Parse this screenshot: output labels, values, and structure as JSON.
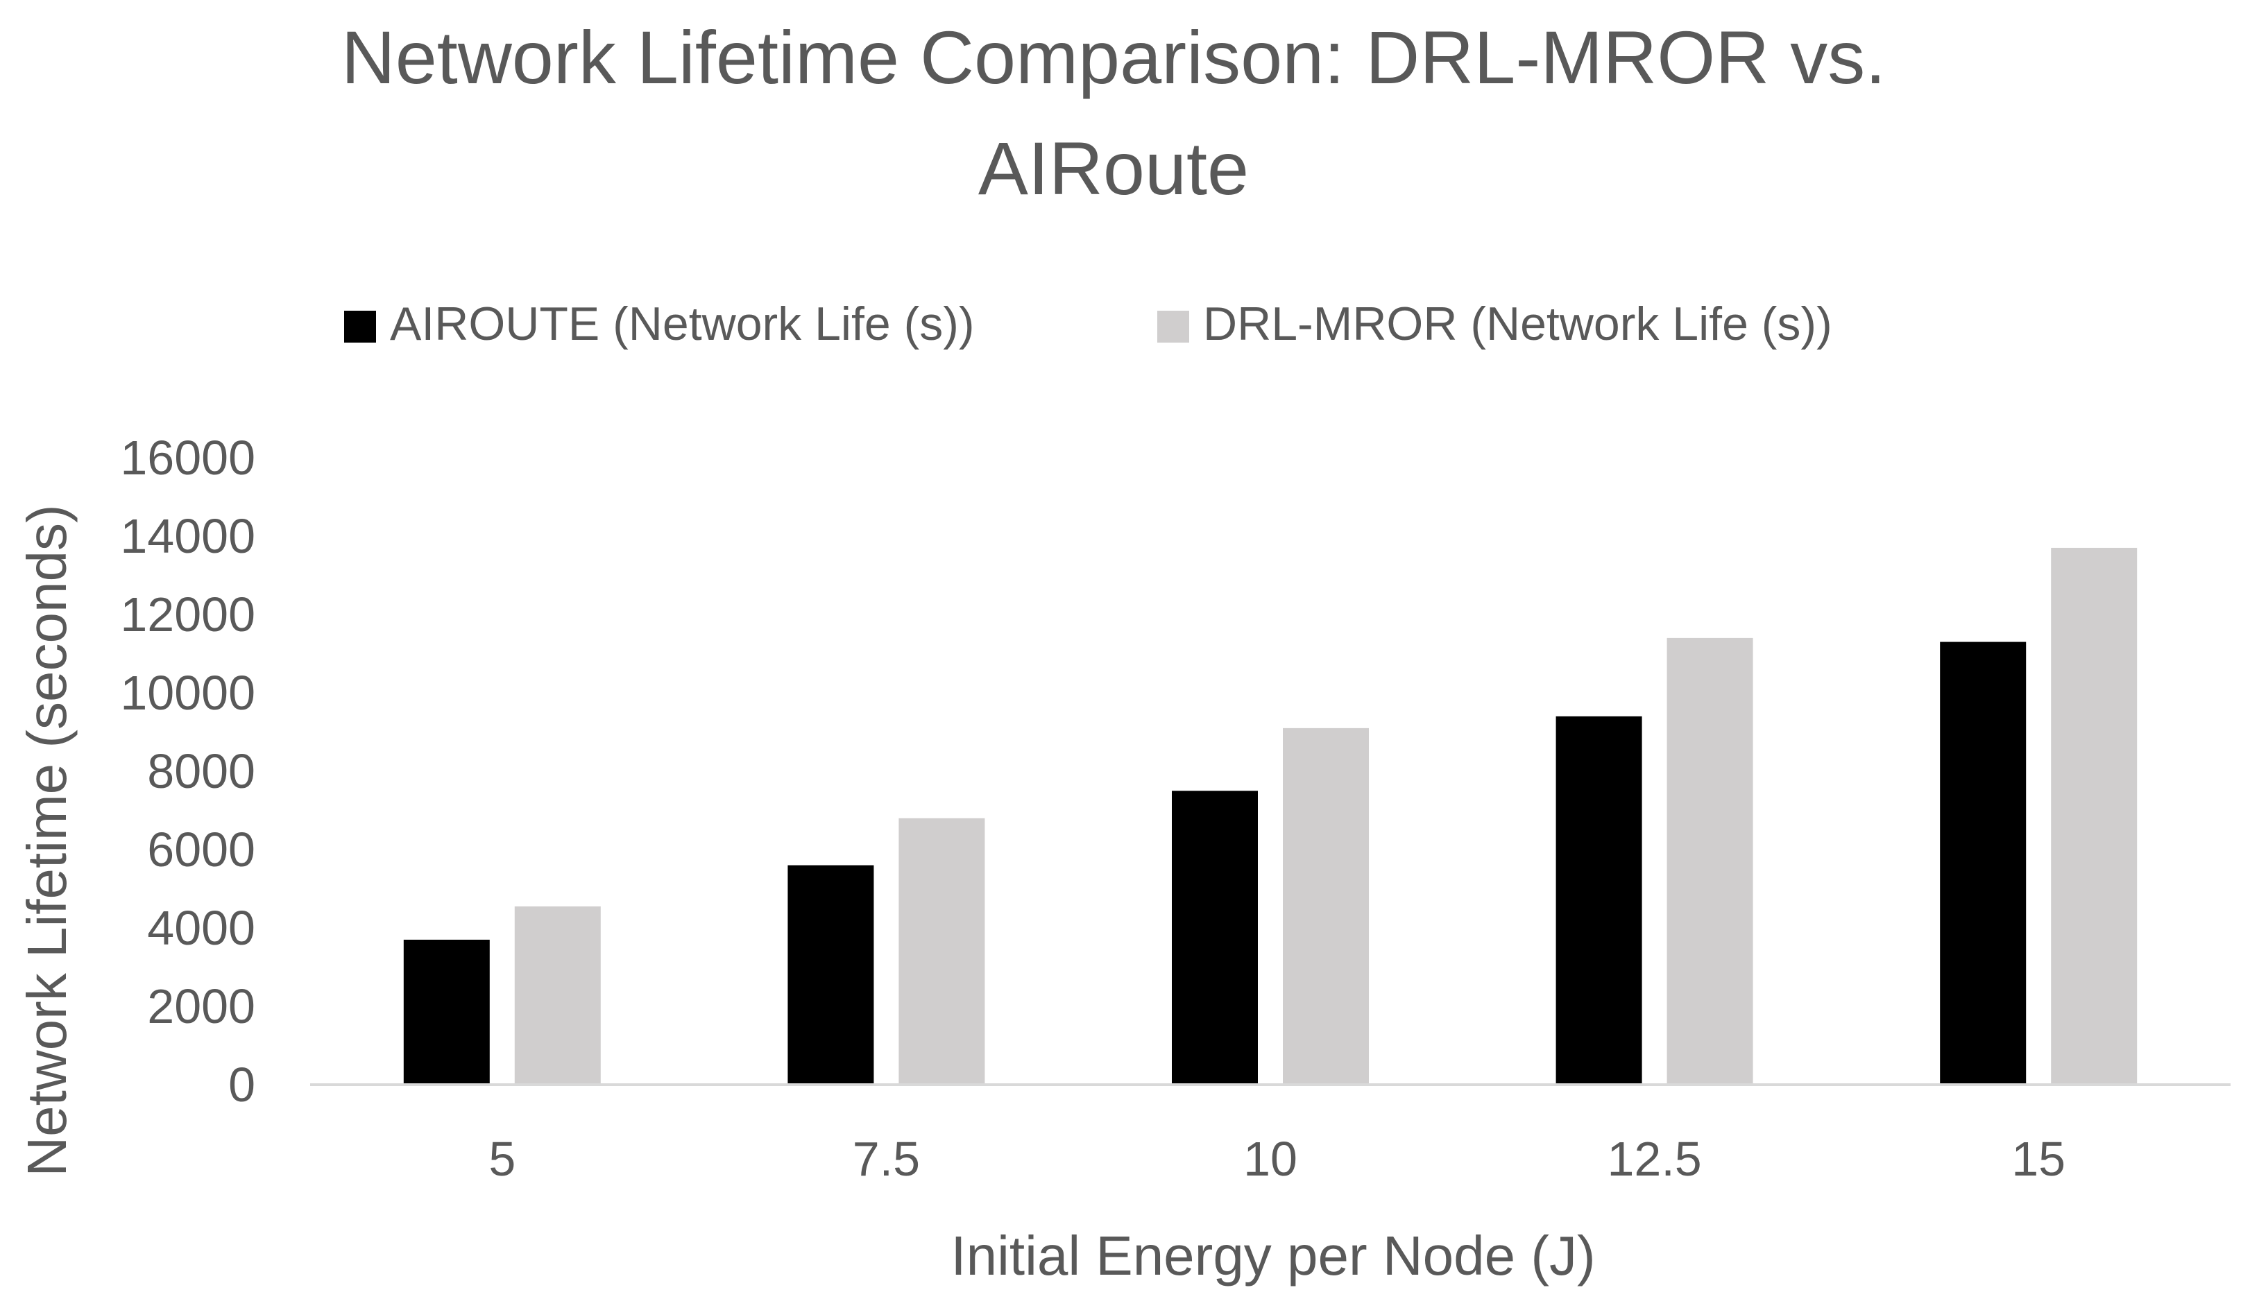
{
  "chart_data": {
    "type": "bar",
    "title_lines": [
      "Network Lifetime Comparison: DRL-MROR vs.",
      "AIRoute"
    ],
    "xlabel": "Initial Energy per Node (J)",
    "ylabel": "Network Lifetime (seconds)",
    "categories": [
      "5",
      "7.5",
      "10",
      "12.5",
      "15"
    ],
    "series": [
      {
        "name": "AIROUTE (Network Life (s))",
        "color": "#000000",
        "values": [
          3700,
          5600,
          7500,
          9400,
          11300
        ]
      },
      {
        "name": "DRL-MROR (Network Life (s))",
        "color": "#d0cece",
        "values": [
          4550,
          6800,
          9100,
          11400,
          13700
        ]
      }
    ],
    "ylim": [
      0,
      16000
    ],
    "yticks": [
      "0",
      "2000",
      "4000",
      "6000",
      "8000",
      "10000",
      "12000",
      "14000",
      "16000"
    ],
    "legend_position": "top",
    "grid": false
  }
}
